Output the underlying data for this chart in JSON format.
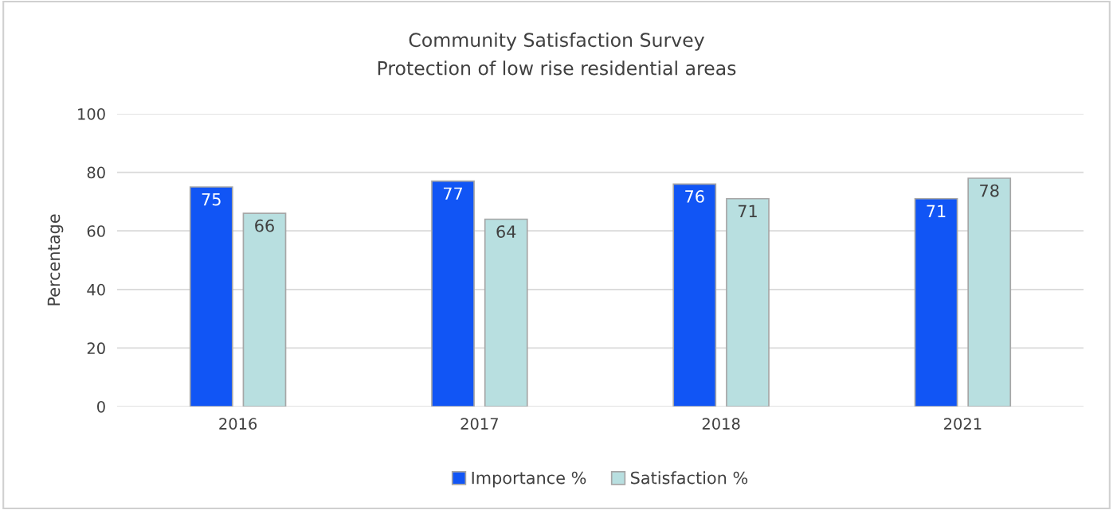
{
  "chart_data": {
    "type": "bar",
    "title": "Community Satisfaction Survey\nProtection of low rise residential areas",
    "ylabel": "Percentage",
    "categories": [
      "2016",
      "2017",
      "2018",
      "2021"
    ],
    "series": [
      {
        "name": "Importance %",
        "color": "#1155f5",
        "values": [
          75,
          77,
          76,
          71
        ]
      },
      {
        "name": "Satisfaction %",
        "color": "#b8dfe0",
        "values": [
          66,
          64,
          71,
          78
        ]
      }
    ],
    "ylim": [
      0,
      100
    ],
    "yticks": [
      0,
      20,
      40,
      60,
      80,
      100
    ],
    "grid": "y",
    "legend": "bottom",
    "data_labels": true
  }
}
